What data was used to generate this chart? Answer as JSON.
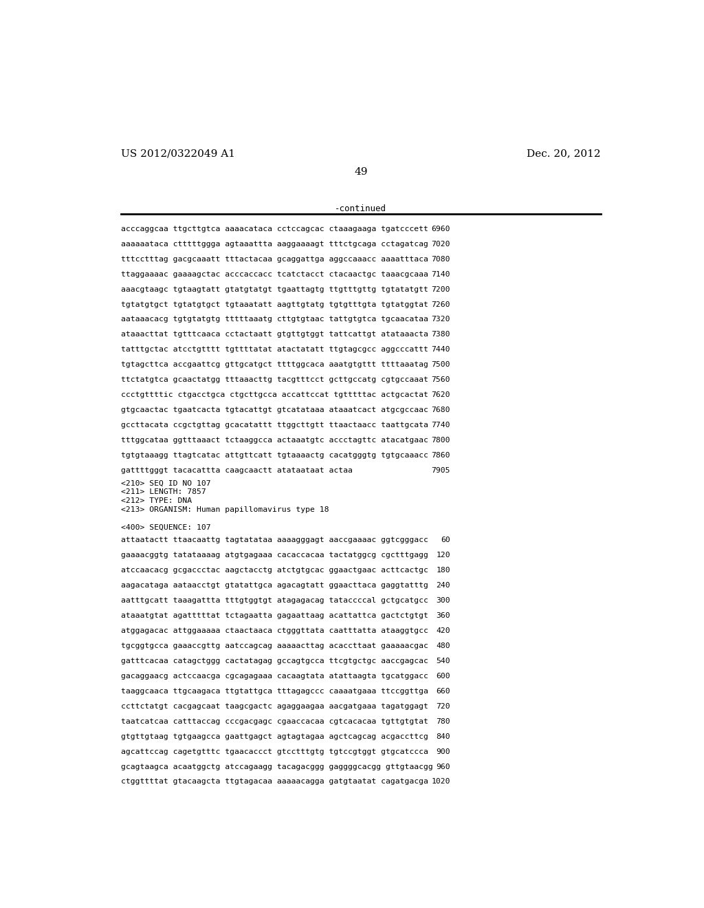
{
  "header_left": "US 2012/0322049 A1",
  "header_right": "Dec. 20, 2012",
  "page_number": "49",
  "continued_label": "-continued",
  "background_color": "#ffffff",
  "text_color": "#000000",
  "sequence_lines_top": [
    [
      "acccaggcaa ttgcttgtca aaaacataca cctccagcac ctaaagaaga tgatcccett",
      "6960"
    ],
    [
      "aaaaaataca ctttttggga agtaaattta aaggaaaagt tttctgcaga cctagatcag",
      "7020"
    ],
    [
      "tttcctttag gacgcaaatt tttactacaa gcaggattga aggccaaacc aaaatttaca",
      "7080"
    ],
    [
      "ttaggaaaac gaaaagctac acccaccacc tcatctacct ctacaactgc taaacgcaaa",
      "7140"
    ],
    [
      "aaacgtaagc tgtaagtatt gtatgtatgt tgaattagtg ttgtttgttg tgtatatgtt",
      "7200"
    ],
    [
      "tgtatgtgct tgtatgtgct tgtaaatatt aagttgtatg tgtgtttgta tgtatggtat",
      "7260"
    ],
    [
      "aataaacacg tgtgtatgtg tttttaaatg cttgtgtaac tattgtgtca tgcaacataa",
      "7320"
    ],
    [
      "ataaacttat tgtttcaaca cctactaatt gtgttgtggt tattcattgt atataaacta",
      "7380"
    ],
    [
      "tatttgctac atcctgtttt tgttttatat atactatatt ttgtagcgcc aggcccattt",
      "7440"
    ],
    [
      "tgtagcttca accgaattcg gttgcatgct ttttggcaca aaatgtgttt ttttaaatag",
      "7500"
    ],
    [
      "ttctatgtca gcaactatgg tttaaacttg tacgtttcct gcttgccatg cgtgccaaat",
      "7560"
    ],
    [
      "ccctgttttic ctgacctgca ctgcttgcca accattccat tgtttttac actgcactat",
      "7620"
    ],
    [
      "gtgcaactac tgaatcacta tgtacattgt gtcatataaa ataaatcact atgcgccaac",
      "7680"
    ],
    [
      "gccttacata ccgctgttag gcacatattt ttggcttgtt ttaactaacc taattgcata",
      "7740"
    ],
    [
      "tttggcataa ggtttaaact tctaaggcca actaaatgtc accctagttc atacatgaac",
      "7800"
    ],
    [
      "tgtgtaaagg ttagtcatac attgttcatt tgtaaaactg cacatgggtg tgtgcaaacc",
      "7860"
    ],
    [
      "gattttgggt tacacattta caagcaactt atataataat actaa",
      "7905"
    ]
  ],
  "metadata_lines": [
    "<210> SEQ ID NO 107",
    "<211> LENGTH: 7857",
    "<212> TYPE: DNA",
    "<213> ORGANISM: Human papillomavirus type 18",
    "",
    "<400> SEQUENCE: 107"
  ],
  "sequence_lines_bottom": [
    [
      "attaatactt ttaacaattg tagtatataa aaaagggagt aaccgaaaac ggtcgggacc",
      "60"
    ],
    [
      "gaaaacggtg tatataaaag atgtgagaaa cacaccacaa tactatggcg cgctttgagg",
      "120"
    ],
    [
      "atccaacacg gcgaccctac aagctacctg atctgtgcac ggaactgaac acttcactgc",
      "180"
    ],
    [
      "aagacataga aataacctgt gtatattgca agacagtatt ggaacttaca gaggtatttg",
      "240"
    ],
    [
      "aatttgcatt taaagattta tttgtggtgt atagagacag tataccccal gctgcatgcc",
      "300"
    ],
    [
      "ataaatgtat agatttttat tctagaatta gagaattaag acattattca gactctgtgt",
      "360"
    ],
    [
      "atggagacac attggaaaaa ctaactaaca ctgggttata caatttatta ataaggtgcc",
      "420"
    ],
    [
      "tgcggtgcca gaaaccgttg aatccagcag aaaaacttag acaccttaat gaaaaacgac",
      "480"
    ],
    [
      "gatttcacaa catagctggg cactatagag gccagtgcca ttcgtgctgc aaccgagcac",
      "540"
    ],
    [
      "gacaggaacg actccaacga cgcagagaaa cacaagtata atattaagta tgcatggacc",
      "600"
    ],
    [
      "taaggcaaca ttgcaagaca ttgtattgca tttagagccc caaaatgaaa ttccggttga",
      "660"
    ],
    [
      "ccttctatgt cacgagcaat taagcgactc agaggaagaa aacgatgaaa tagatggagt",
      "720"
    ],
    [
      "taatcatcaa catttaccag cccgacgagc cgaaccacaa cgtcacacaa tgttgtgtat",
      "780"
    ],
    [
      "gtgttgtaag tgtgaagcca gaattgagct agtagtagaa agctcagcag acgaccttcg",
      "840"
    ],
    [
      "agcattccag cagetgtttc tgaacaccct gtcctttgtg tgtccgtggt gtgcatccca",
      "900"
    ],
    [
      "gcagtaagca acaatggctg atccagaagg tacagacggg gaggggcacgg gttgtaacgg",
      "960"
    ],
    [
      "ctggttttat gtacaagcta ttgtagacaa aaaaacagga gatgtaatat cagatgacga",
      "1020"
    ]
  ],
  "seq_font_size": 8.2,
  "meta_font_size": 8.2,
  "header_font_size": 11,
  "page_num_font_size": 11
}
